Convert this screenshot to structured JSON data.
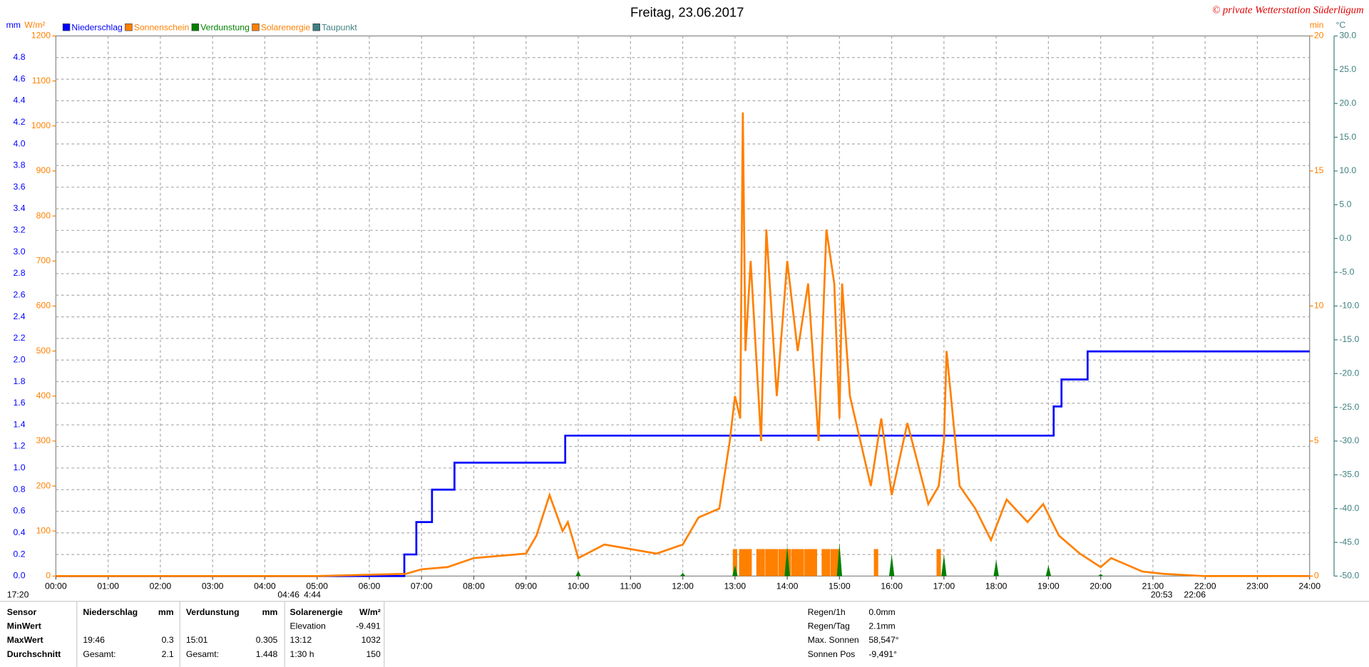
{
  "chart_data": {
    "type": "line",
    "title": "Freitag, 23.06.2017",
    "copyright": "© private Wetterstation Süderlügum",
    "units": {
      "mm": "mm",
      "solar": "W/m²",
      "min": "min",
      "temp": "°C"
    },
    "xlim": [
      0,
      24
    ],
    "xticks": [
      {
        "value": 0,
        "label": "00:00"
      },
      {
        "value": 1,
        "label": "01:00"
      },
      {
        "value": 2,
        "label": "02:00"
      },
      {
        "value": 3,
        "label": "03:00"
      },
      {
        "value": 4,
        "label": "04:00"
      },
      {
        "value": 5,
        "label": "05:00"
      },
      {
        "value": 6,
        "label": "06:00"
      },
      {
        "value": 7,
        "label": "07:00"
      },
      {
        "value": 8,
        "label": "08:00"
      },
      {
        "value": 9,
        "label": "09:00"
      },
      {
        "value": 10,
        "label": "10:00"
      },
      {
        "value": 11,
        "label": "11:00"
      },
      {
        "value": 12,
        "label": "12:00"
      },
      {
        "value": 13,
        "label": "13:00"
      },
      {
        "value": 14,
        "label": "14:00"
      },
      {
        "value": 15,
        "label": "15:00"
      },
      {
        "value": 16,
        "label": "16:00"
      },
      {
        "value": 17,
        "label": "17:00"
      },
      {
        "value": 18,
        "label": "18:00"
      },
      {
        "value": 19,
        "label": "19:00"
      },
      {
        "value": 20,
        "label": "20:00"
      },
      {
        "value": 21,
        "label": "21:00"
      },
      {
        "value": 22,
        "label": "22:00"
      },
      {
        "value": 23,
        "label": "23:00"
      },
      {
        "value": 24,
        "label": "24:00"
      }
    ],
    "ylim": [
      0,
      5
    ],
    "yticks": [
      {
        "value": 0,
        "label": "0.0"
      },
      0.2,
      0.4,
      0.6,
      0.8,
      {
        "value": 1,
        "label": "1.0"
      },
      1.2,
      1.4,
      1.6,
      1.8,
      {
        "value": 2,
        "label": "2.0"
      },
      2.2,
      2.4,
      2.6,
      2.8,
      {
        "value": 3,
        "label": "3.0"
      },
      3.2,
      3.4,
      3.6,
      3.8,
      {
        "value": 4,
        "label": "4.0"
      },
      4.2,
      4.4,
      4.6,
      4.8
    ],
    "ysolar_lim": [
      0,
      1200
    ],
    "ysolar_ticks": [
      0,
      100,
      200,
      300,
      400,
      500,
      600,
      700,
      800,
      900,
      1000,
      1100,
      1200
    ],
    "y2lim": [
      0,
      20
    ],
    "y2ticks": [
      0,
      5,
      10,
      15,
      20
    ],
    "y3lim": [
      -50,
      30
    ],
    "y3ticks": [
      {
        "value": -50,
        "label": "-50.0"
      },
      {
        "value": -45,
        "label": "-45.0"
      },
      {
        "value": -40,
        "label": "-40.0"
      },
      {
        "value": -35,
        "label": "-35.0"
      },
      {
        "value": -30,
        "label": "-30.0"
      },
      {
        "value": -25,
        "label": "-25.0"
      },
      {
        "value": -20,
        "label": "-20.0"
      },
      {
        "value": -15,
        "label": "-15.0"
      },
      {
        "value": -10,
        "label": "-10.0"
      },
      {
        "value": -5,
        "label": "-5.0"
      },
      {
        "value": 0,
        "label": "0.0"
      },
      {
        "value": 5,
        "label": "5.0"
      },
      {
        "value": 10,
        "label": "10.0"
      },
      {
        "value": 15,
        "label": "15.0"
      },
      {
        "value": 20,
        "label": "20.0"
      },
      {
        "value": 25,
        "label": "25.0"
      },
      {
        "value": 30,
        "label": "30.0"
      }
    ],
    "grid": true,
    "series": [
      {
        "name": "Niederschlag",
        "color": "#0000ff",
        "axis": "y",
        "kind": "line",
        "x": [
          0,
          6.67,
          6.67,
          6.9,
          6.9,
          7.2,
          7.2,
          7.63,
          7.63,
          9.75,
          9.75,
          19.1,
          19.1,
          19.25,
          19.25,
          19.75,
          19.75,
          24
        ],
        "values": [
          0,
          0,
          0.2,
          0.2,
          0.5,
          0.5,
          0.8,
          0.8,
          1.05,
          1.05,
          1.3,
          1.3,
          1.57,
          1.57,
          1.82,
          1.82,
          2.08,
          2.08
        ]
      },
      {
        "name": "Sonnenschein",
        "color": "#ff8000",
        "axis": "y2",
        "kind": "bar",
        "x": [
          13.0,
          13.12,
          13.2,
          13.28,
          13.45,
          13.53,
          13.62,
          13.7,
          13.78,
          13.87,
          13.95,
          14.03,
          14.12,
          14.2,
          14.28,
          14.37,
          14.45,
          14.53,
          14.7,
          14.78,
          14.87,
          14.95,
          15.7,
          16.9
        ],
        "values": [
          1,
          1,
          1,
          1,
          1,
          1,
          1,
          1,
          1,
          1,
          1,
          1,
          1,
          1,
          1,
          1,
          1,
          1,
          1,
          1,
          1,
          1,
          1,
          1
        ]
      },
      {
        "name": "Verdunstung",
        "color": "#008000",
        "axis": "y",
        "kind": "spike",
        "x": [
          10,
          12,
          13,
          14,
          15,
          16,
          17,
          18,
          19,
          20
        ],
        "values": [
          0.05,
          0.03,
          0.1,
          0.28,
          0.305,
          0.2,
          0.2,
          0.15,
          0.1,
          0.02
        ]
      },
      {
        "name": "Solarenergie",
        "color": "#ff8000",
        "axis": "ysolar",
        "kind": "line",
        "x": [
          0,
          5,
          6,
          6.7,
          7.0,
          7.5,
          8.0,
          8.5,
          9.0,
          9.2,
          9.45,
          9.7,
          9.8,
          10.0,
          10.5,
          11.0,
          11.5,
          12.0,
          12.3,
          12.7,
          12.9,
          13.0,
          13.1,
          13.15,
          13.2,
          13.3,
          13.5,
          13.6,
          13.8,
          14.0,
          14.2,
          14.4,
          14.6,
          14.75,
          14.9,
          15.0,
          15.05,
          15.2,
          15.4,
          15.6,
          15.8,
          16.0,
          16.3,
          16.7,
          16.9,
          17.0,
          17.05,
          17.3,
          17.6,
          17.9,
          18.2,
          18.6,
          18.9,
          19.2,
          19.6,
          20.0,
          20.2,
          20.8,
          21.2,
          22.0,
          24
        ],
        "values": [
          0,
          0,
          3,
          5,
          15,
          20,
          40,
          45,
          50,
          90,
          180,
          100,
          120,
          40,
          70,
          60,
          50,
          70,
          130,
          150,
          300,
          400,
          350,
          1030,
          500,
          700,
          300,
          770,
          400,
          700,
          500,
          650,
          300,
          770,
          650,
          350,
          650,
          400,
          300,
          200,
          350,
          180,
          340,
          160,
          200,
          300,
          500,
          200,
          150,
          80,
          170,
          120,
          160,
          90,
          50,
          20,
          40,
          10,
          5,
          0,
          0
        ]
      },
      {
        "name": "Taupunkt",
        "color": "#408080",
        "axis": "y3",
        "kind": "line",
        "x": [],
        "values": []
      }
    ],
    "annotations": [
      {
        "label": "17:20",
        "x": 8
      },
      {
        "label": "04:46",
        "x": 318
      },
      {
        "label": "4:44",
        "x": 348
      },
      {
        "label": "20:53",
        "x": 1318
      },
      {
        "label": "22:06",
        "x": 1356
      }
    ]
  },
  "table": {
    "header": [
      "Sensor",
      "Niederschlag",
      "mm",
      "Verdunstung",
      "mm",
      "Solarenergie",
      "W/m²"
    ],
    "rows": [
      [
        "MinWert",
        null,
        null,
        null,
        null,
        "Elevation",
        "-9.491"
      ],
      [
        "MaxWert",
        "19:46",
        "0.3",
        "15:01",
        "0.305",
        "13:12",
        "1032"
      ],
      [
        "Durchschnitt",
        "Gesamt:",
        "2.1",
        "Gesamt:",
        "1.448",
        "1:30 h",
        "150"
      ]
    ]
  },
  "info": [
    [
      "Regen/1h",
      "0.0mm"
    ],
    [
      "Regen/Tag",
      "2.1mm"
    ],
    [
      "Max. Sonnen",
      "58,547°"
    ],
    [
      "Sonnen Pos",
      "-9,491°"
    ]
  ]
}
